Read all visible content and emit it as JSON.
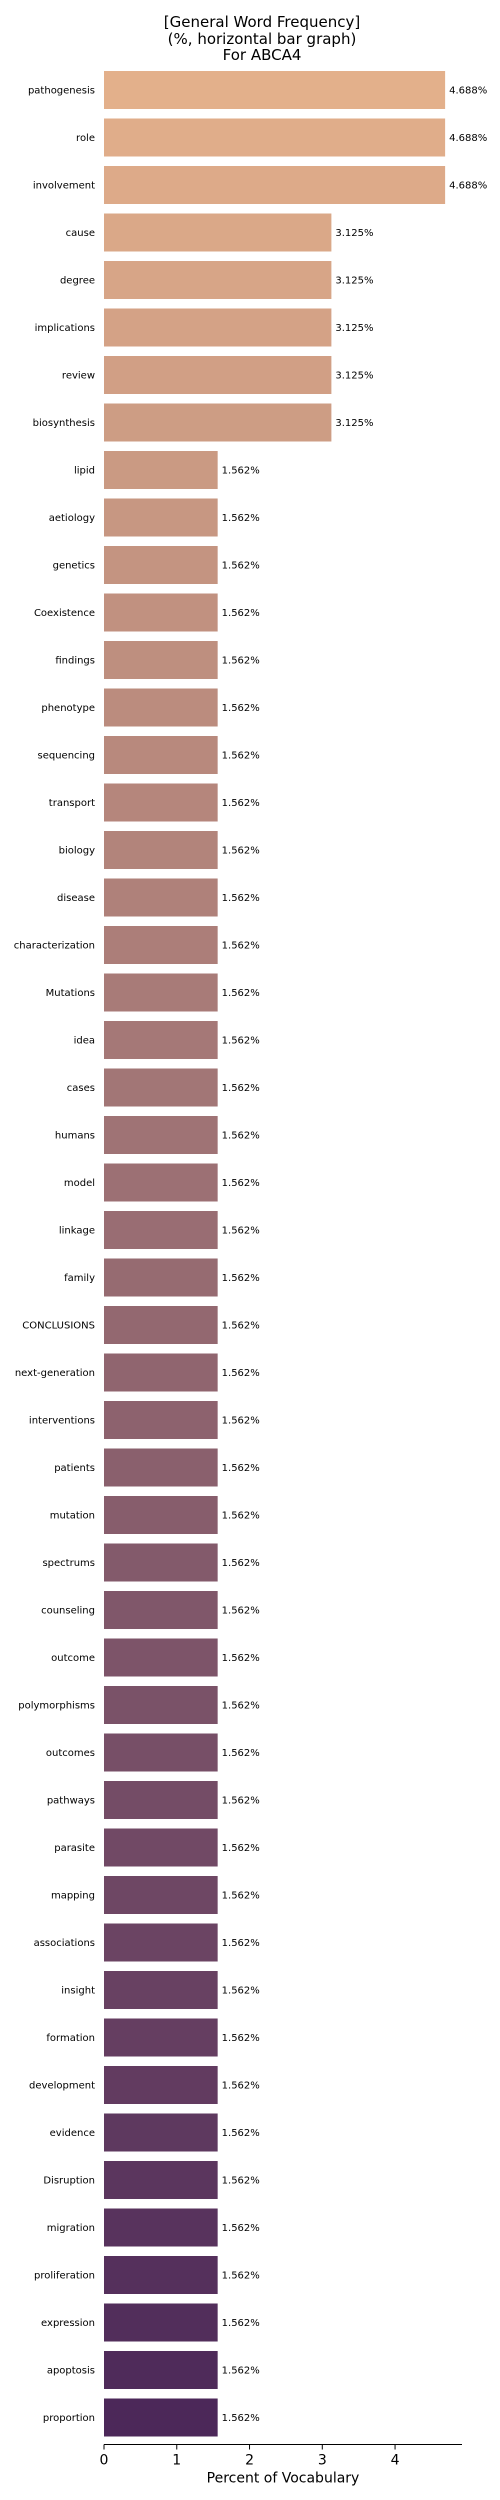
{
  "chart_data": {
    "type": "bar",
    "orientation": "horizontal",
    "title_lines": [
      "[General Word Frequency]",
      "(%, horizontal bar graph)",
      "For ABCA4"
    ],
    "xlabel": "Percent of Vocabulary",
    "ylabel": "",
    "xlim": [
      0,
      4.92
    ],
    "xticks": [
      0,
      1,
      2,
      3,
      4
    ],
    "grid": false,
    "legend": "none",
    "colors": {
      "start": "#e3b08b",
      "end": "#4c2859"
    },
    "categories": [
      "pathogenesis",
      "role",
      "involvement",
      "cause",
      "degree",
      "implications",
      "review",
      "biosynthesis",
      "lipid",
      "aetiology",
      "genetics",
      "Coexistence",
      "findings",
      "phenotype",
      "sequencing",
      "transport",
      "biology",
      "disease",
      "characterization",
      "Mutations",
      "idea",
      "cases",
      "humans",
      "model",
      "linkage",
      "family",
      "CONCLUSIONS",
      "next-generation",
      "interventions",
      "patients",
      "mutation",
      "spectrums",
      "counseling",
      "outcome",
      "polymorphisms",
      "outcomes",
      "pathways",
      "parasite",
      "mapping",
      "associations",
      "insight",
      "formation",
      "development",
      "evidence",
      "Disruption",
      "migration",
      "proliferation",
      "expression",
      "apoptosis",
      "proportion"
    ],
    "values": [
      4.688,
      4.688,
      4.688,
      3.125,
      3.125,
      3.125,
      3.125,
      3.125,
      1.562,
      1.562,
      1.562,
      1.562,
      1.562,
      1.562,
      1.562,
      1.562,
      1.562,
      1.562,
      1.562,
      1.562,
      1.562,
      1.562,
      1.562,
      1.562,
      1.562,
      1.562,
      1.562,
      1.562,
      1.562,
      1.562,
      1.562,
      1.562,
      1.562,
      1.562,
      1.562,
      1.562,
      1.562,
      1.562,
      1.562,
      1.562,
      1.562,
      1.562,
      1.562,
      1.562,
      1.562,
      1.562,
      1.562,
      1.562,
      1.562,
      1.562
    ],
    "value_labels": [
      "4.688%",
      "4.688%",
      "4.688%",
      "3.125%",
      "3.125%",
      "3.125%",
      "3.125%",
      "3.125%",
      "1.562%",
      "1.562%",
      "1.562%",
      "1.562%",
      "1.562%",
      "1.562%",
      "1.562%",
      "1.562%",
      "1.562%",
      "1.562%",
      "1.562%",
      "1.562%",
      "1.562%",
      "1.562%",
      "1.562%",
      "1.562%",
      "1.562%",
      "1.562%",
      "1.562%",
      "1.562%",
      "1.562%",
      "1.562%",
      "1.562%",
      "1.562%",
      "1.562%",
      "1.562%",
      "1.562%",
      "1.562%",
      "1.562%",
      "1.562%",
      "1.562%",
      "1.562%",
      "1.562%",
      "1.562%",
      "1.562%",
      "1.562%",
      "1.562%",
      "1.562%",
      "1.562%",
      "1.562%",
      "1.562%",
      "1.562%"
    ]
  }
}
